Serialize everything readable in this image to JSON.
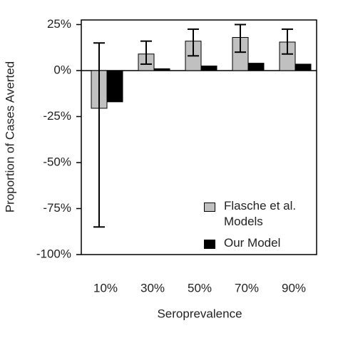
{
  "chart_data": {
    "type": "bar",
    "x_label": "Seroprevalence",
    "y_label": "Proportion of Cases Averted",
    "categories": [
      "10%",
      "30%",
      "50%",
      "70%",
      "90%"
    ],
    "series": [
      {
        "name": "Flasche et al. Models",
        "color": "#c0c0c0",
        "values": [
          -20.5,
          9,
          16,
          18,
          15.5
        ],
        "lower": [
          -85,
          3.5,
          8,
          10,
          9
        ],
        "upper": [
          15,
          16,
          22.5,
          25,
          22.5
        ]
      },
      {
        "name": "Our Model",
        "color": "#000000",
        "values": [
          -17,
          1,
          2.5,
          4,
          3.5
        ]
      }
    ],
    "ylim": [
      -100,
      27.5
    ],
    "yticks": [
      {
        "value": -100,
        "label": "-100%"
      },
      {
        "value": -75,
        "label": "-75%"
      },
      {
        "value": -50,
        "label": "-50%"
      },
      {
        "value": -25,
        "label": "-25%"
      },
      {
        "value": 0,
        "label": "0%"
      },
      {
        "value": 25,
        "label": "25%"
      }
    ],
    "legend": "bottom-right"
  }
}
